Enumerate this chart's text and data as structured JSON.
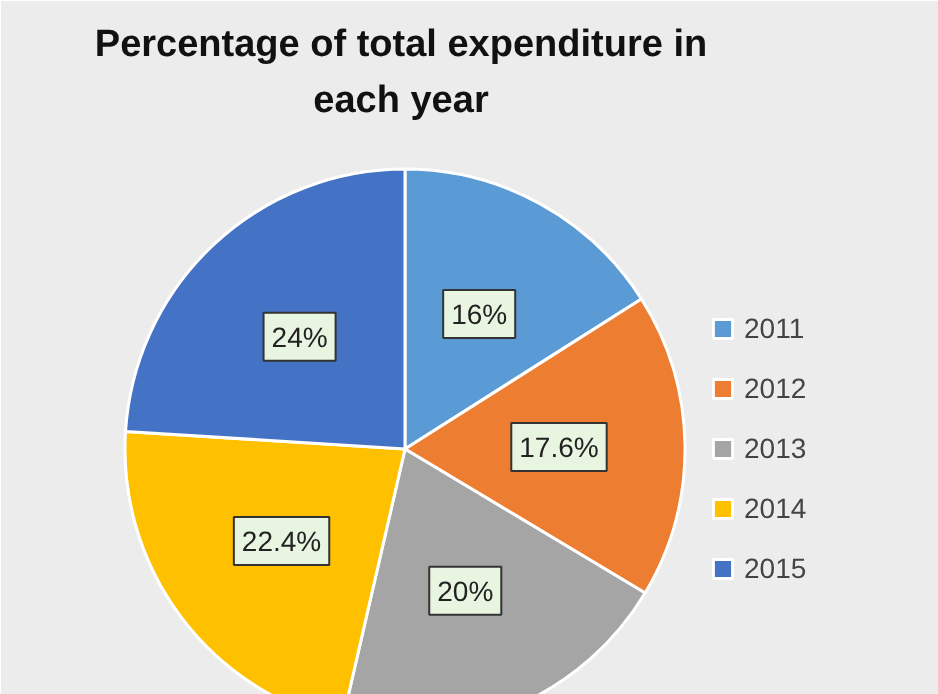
{
  "chart_data": {
    "type": "pie",
    "title": "Percentage of total expenditure in each year",
    "categories": [
      "2011",
      "2012",
      "2013",
      "2014",
      "2015"
    ],
    "values": [
      16,
      17.6,
      20,
      22.4,
      24
    ],
    "value_labels": [
      "16%",
      "17.6%",
      "20%",
      "22.4%",
      "24%"
    ],
    "colors": [
      "#5b9bd5",
      "#ed7d31",
      "#a5a5a5",
      "#ffc000",
      "#4472c4"
    ],
    "legend": "right"
  }
}
